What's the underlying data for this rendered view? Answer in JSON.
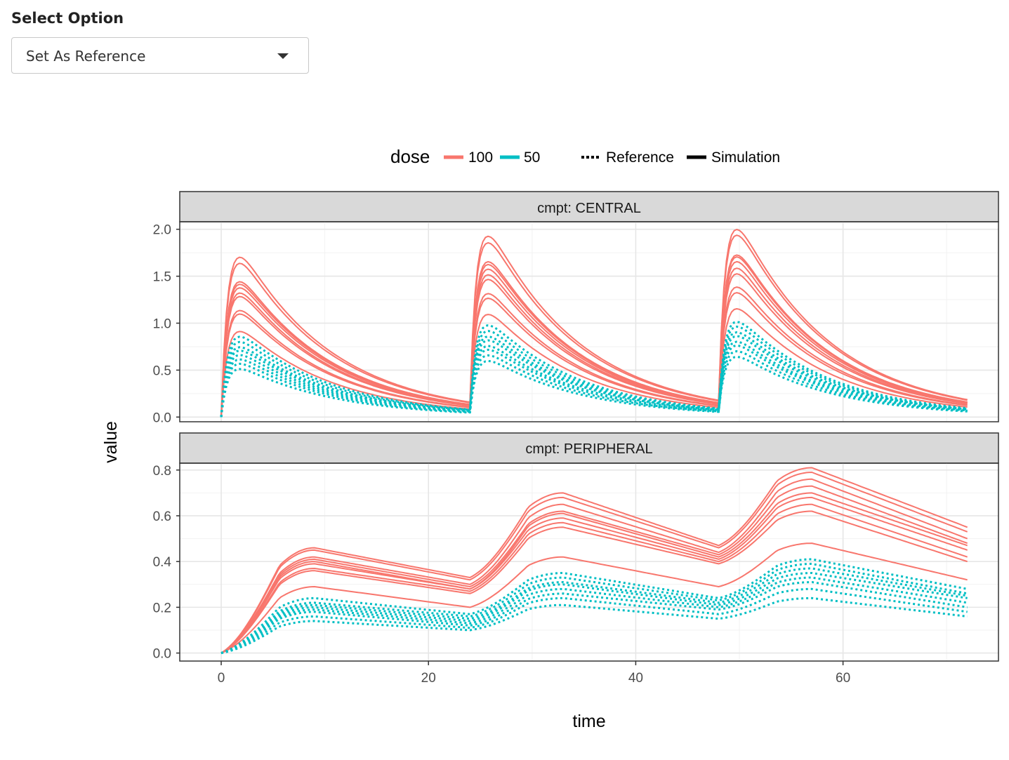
{
  "control": {
    "label": "Select Option",
    "selected": "Set As Reference"
  },
  "chart_data": {
    "type": "line",
    "xlabel": "time",
    "ylabel": "value",
    "xlim": [
      -4,
      75
    ],
    "x_ticks": [
      0,
      20,
      40,
      60
    ],
    "grid": true,
    "legend": {
      "placement": "top",
      "color_title": "dose",
      "color_entries": [
        {
          "label": "100",
          "color": "#F8766D"
        },
        {
          "label": "50",
          "color": "#00BFC4"
        }
      ],
      "linetype_entries": [
        {
          "label": "Reference",
          "style": "dotted"
        },
        {
          "label": "Simulation",
          "style": "solid"
        }
      ]
    },
    "dosing_times": [
      0,
      24,
      48
    ],
    "panels": [
      {
        "strip": "cmpt: CENTRAL",
        "ylim": [
          -0.05,
          2.08
        ],
        "y_ticks": [
          0.0,
          0.5,
          1.0,
          1.5,
          2.0
        ],
        "y_tick_labels": [
          "0.0",
          "0.5",
          "1.0",
          "1.5",
          "2.0"
        ],
        "series": [
          {
            "dose": "100",
            "linetype": "Simulation",
            "peaks": [
              1.83,
              1.93,
              1.99
            ]
          },
          {
            "dose": "100",
            "linetype": "Simulation",
            "peaks": [
              1.76,
              1.86,
              1.93
            ]
          },
          {
            "dose": "100",
            "linetype": "Simulation",
            "peaks": [
              1.55,
              1.66,
              1.72
            ]
          },
          {
            "dose": "100",
            "linetype": "Simulation",
            "peaks": [
              1.52,
              1.63,
              1.7
            ]
          },
          {
            "dose": "100",
            "linetype": "Simulation",
            "peaks": [
              1.48,
              1.58,
              1.65
            ]
          },
          {
            "dose": "100",
            "linetype": "Simulation",
            "peaks": [
              1.42,
              1.52,
              1.58
            ]
          },
          {
            "dose": "100",
            "linetype": "Simulation",
            "peaks": [
              1.38,
              1.47,
              1.52
            ]
          },
          {
            "dose": "100",
            "linetype": "Simulation",
            "peaks": [
              1.22,
              1.32,
              1.38
            ]
          },
          {
            "dose": "100",
            "linetype": "Simulation",
            "peaks": [
              1.18,
              1.27,
              1.32
            ]
          },
          {
            "dose": "100",
            "linetype": "Simulation",
            "peaks": [
              0.98,
              1.1,
              1.15
            ]
          },
          {
            "dose": "50",
            "linetype": "Reference",
            "peaks": [
              0.92,
              0.98,
              1.01
            ]
          },
          {
            "dose": "50",
            "linetype": "Reference",
            "peaks": [
              0.86,
              0.92,
              0.96
            ]
          },
          {
            "dose": "50",
            "linetype": "Reference",
            "peaks": [
              0.8,
              0.86,
              0.9
            ]
          },
          {
            "dose": "50",
            "linetype": "Reference",
            "peaks": [
              0.76,
              0.82,
              0.86
            ]
          },
          {
            "dose": "50",
            "linetype": "Reference",
            "peaks": [
              0.71,
              0.76,
              0.8
            ]
          },
          {
            "dose": "50",
            "linetype": "Reference",
            "peaks": [
              0.66,
              0.72,
              0.76
            ]
          },
          {
            "dose": "50",
            "linetype": "Reference",
            "peaks": [
              0.61,
              0.66,
              0.7
            ]
          },
          {
            "dose": "50",
            "linetype": "Reference",
            "peaks": [
              0.55,
              0.6,
              0.64
            ]
          }
        ]
      },
      {
        "strip": "cmpt: PERIPHERAL",
        "ylim": [
          -0.035,
          0.83
        ],
        "y_ticks": [
          0.0,
          0.2,
          0.4,
          0.6,
          0.8
        ],
        "y_tick_labels": [
          "0.0",
          "0.2",
          "0.4",
          "0.6",
          "0.8"
        ],
        "series": [
          {
            "dose": "100",
            "linetype": "Simulation",
            "peaks": [
              0.46,
              0.7,
              0.81
            ],
            "troughs": [
              0.33,
              0.47,
              0.55
            ]
          },
          {
            "dose": "100",
            "linetype": "Simulation",
            "peaks": [
              0.45,
              0.68,
              0.79
            ],
            "troughs": [
              0.32,
              0.46,
              0.53
            ]
          },
          {
            "dose": "100",
            "linetype": "Simulation",
            "peaks": [
              0.42,
              0.65,
              0.76
            ],
            "troughs": [
              0.3,
              0.44,
              0.5
            ]
          },
          {
            "dose": "100",
            "linetype": "Simulation",
            "peaks": [
              0.41,
              0.62,
              0.73
            ],
            "troughs": [
              0.29,
              0.43,
              0.48
            ]
          },
          {
            "dose": "100",
            "linetype": "Simulation",
            "peaks": [
              0.4,
              0.61,
              0.7
            ],
            "troughs": [
              0.28,
              0.42,
              0.47
            ]
          },
          {
            "dose": "100",
            "linetype": "Simulation",
            "peaks": [
              0.39,
              0.59,
              0.68
            ],
            "troughs": [
              0.28,
              0.41,
              0.45
            ]
          },
          {
            "dose": "100",
            "linetype": "Simulation",
            "peaks": [
              0.37,
              0.57,
              0.65
            ],
            "troughs": [
              0.27,
              0.4,
              0.42
            ]
          },
          {
            "dose": "100",
            "linetype": "Simulation",
            "peaks": [
              0.36,
              0.55,
              0.62
            ],
            "troughs": [
              0.26,
              0.39,
              0.4
            ]
          },
          {
            "dose": "100",
            "linetype": "Simulation",
            "peaks": [
              0.29,
              0.42,
              0.48
            ],
            "troughs": [
              0.2,
              0.29,
              0.32
            ]
          },
          {
            "dose": "50",
            "linetype": "Reference",
            "peaks": [
              0.24,
              0.35,
              0.41
            ],
            "troughs": [
              0.17,
              0.24,
              0.28
            ]
          },
          {
            "dose": "50",
            "linetype": "Reference",
            "peaks": [
              0.22,
              0.33,
              0.39
            ],
            "troughs": [
              0.16,
              0.23,
              0.26
            ]
          },
          {
            "dose": "50",
            "linetype": "Reference",
            "peaks": [
              0.21,
              0.31,
              0.37
            ],
            "troughs": [
              0.15,
              0.22,
              0.25
            ]
          },
          {
            "dose": "50",
            "linetype": "Reference",
            "peaks": [
              0.2,
              0.3,
              0.35
            ],
            "troughs": [
              0.14,
              0.21,
              0.24
            ]
          },
          {
            "dose": "50",
            "linetype": "Reference",
            "peaks": [
              0.19,
              0.28,
              0.33
            ],
            "troughs": [
              0.13,
              0.2,
              0.22
            ]
          },
          {
            "dose": "50",
            "linetype": "Reference",
            "peaks": [
              0.18,
              0.26,
              0.31
            ],
            "troughs": [
              0.12,
              0.19,
              0.2
            ]
          },
          {
            "dose": "50",
            "linetype": "Reference",
            "peaks": [
              0.16,
              0.24,
              0.28
            ],
            "troughs": [
              0.11,
              0.17,
              0.18
            ]
          },
          {
            "dose": "50",
            "linetype": "Reference",
            "peaks": [
              0.14,
              0.21,
              0.24
            ],
            "troughs": [
              0.1,
              0.15,
              0.16
            ]
          }
        ]
      }
    ]
  }
}
